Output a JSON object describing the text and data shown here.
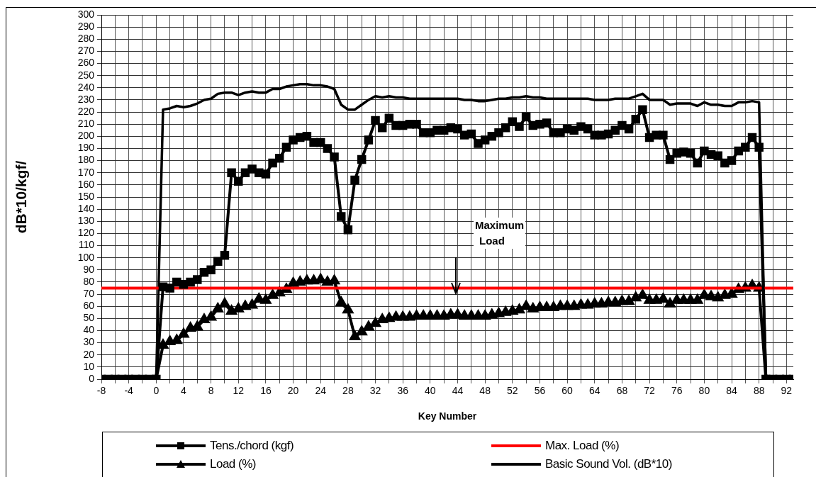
{
  "chart_data": {
    "type": "line",
    "xlabel": "Key Number",
    "ylabel": "dB*10/kgf/",
    "x": [
      -8,
      -7,
      -6,
      -5,
      -4,
      -3,
      -2,
      -1,
      0,
      1,
      2,
      3,
      4,
      5,
      6,
      7,
      8,
      9,
      10,
      11,
      12,
      13,
      14,
      15,
      16,
      17,
      18,
      19,
      20,
      21,
      22,
      23,
      24,
      25,
      26,
      27,
      28,
      29,
      30,
      31,
      32,
      33,
      34,
      35,
      36,
      37,
      38,
      39,
      40,
      41,
      42,
      43,
      44,
      45,
      46,
      47,
      48,
      49,
      50,
      51,
      52,
      53,
      54,
      55,
      56,
      57,
      58,
      59,
      60,
      61,
      62,
      63,
      64,
      65,
      66,
      67,
      68,
      69,
      70,
      71,
      72,
      73,
      74,
      75,
      76,
      77,
      78,
      79,
      80,
      81,
      82,
      83,
      84,
      85,
      86,
      87,
      88,
      89,
      90,
      91,
      92,
      93
    ],
    "series": [
      {
        "name": "Tens./chord (kgf)",
        "color": "#000000",
        "marker": "square",
        "values": [
          0,
          0,
          0,
          0,
          0,
          0,
          0,
          0,
          0,
          76,
          75,
          80,
          78,
          80,
          82,
          88,
          90,
          97,
          102,
          170,
          163,
          170,
          173,
          170,
          169,
          178,
          182,
          191,
          197,
          199,
          200,
          195,
          195,
          190,
          183,
          134,
          123,
          164,
          181,
          197,
          213,
          207,
          215,
          209,
          209,
          210,
          210,
          203,
          203,
          205,
          205,
          207,
          206,
          201,
          202,
          194,
          197,
          200,
          203,
          207,
          212,
          208,
          216,
          209,
          210,
          211,
          203,
          203,
          206,
          205,
          208,
          206,
          201,
          201,
          202,
          205,
          209,
          206,
          214,
          222,
          199,
          201,
          201,
          181,
          186,
          187,
          186,
          178,
          188,
          185,
          184,
          178,
          180,
          188,
          191,
          199,
          191,
          0,
          0,
          0,
          0,
          0
        ]
      },
      {
        "name": "Max. Load (%)",
        "color": "#ff0000",
        "marker": "none",
        "x": [
          -8,
          93
        ],
        "values": [
          75,
          75
        ]
      },
      {
        "name": "Load (%)",
        "color": "#000000",
        "marker": "triangle",
        "values": [
          null,
          null,
          null,
          null,
          null,
          null,
          null,
          null,
          0,
          28,
          31,
          32,
          37,
          42,
          43,
          49,
          51,
          58,
          62,
          56,
          58,
          60,
          61,
          66,
          65,
          69,
          71,
          74,
          79,
          80,
          81,
          81,
          82,
          80,
          81,
          63,
          57,
          35,
          39,
          43,
          46,
          49,
          50,
          51,
          51,
          51,
          52,
          52,
          52,
          52,
          52,
          53,
          53,
          52,
          52,
          52,
          52,
          53,
          54,
          55,
          56,
          57,
          60,
          58,
          59,
          59,
          59,
          60,
          60,
          60,
          61,
          61,
          62,
          62,
          63,
          63,
          64,
          64,
          67,
          69,
          65,
          65,
          66,
          62,
          65,
          65,
          65,
          65,
          69,
          68,
          67,
          69,
          70,
          74,
          75,
          77,
          75,
          0,
          null,
          null,
          null,
          null
        ]
      },
      {
        "name": "Basic Sound Vol. (dB*10)",
        "color": "#000000",
        "marker": "none",
        "values": [
          null,
          null,
          null,
          null,
          null,
          null,
          null,
          null,
          0,
          222,
          223,
          225,
          224,
          225,
          227,
          230,
          231,
          235,
          236,
          236,
          234,
          236,
          237,
          236,
          236,
          239,
          239,
          241,
          242,
          243,
          243,
          242,
          242,
          241,
          239,
          226,
          222,
          222,
          226,
          230,
          233,
          232,
          233,
          232,
          232,
          231,
          231,
          231,
          231,
          231,
          231,
          231,
          231,
          230,
          230,
          229,
          229,
          230,
          231,
          231,
          232,
          232,
          233,
          232,
          232,
          231,
          231,
          231,
          231,
          231,
          231,
          231,
          230,
          230,
          230,
          231,
          231,
          231,
          233,
          235,
          230,
          230,
          230,
          226,
          227,
          227,
          227,
          225,
          228,
          226,
          226,
          225,
          225,
          228,
          228,
          229,
          228,
          0,
          null,
          null,
          null,
          null
        ]
      }
    ],
    "xlim": [
      -8,
      93
    ],
    "xticks": [
      -8,
      {
        "value": -6,
        "label": null
      },
      -4,
      {
        "value": -2,
        "label": null
      },
      0,
      {
        "value": 2,
        "label": null
      },
      4,
      {
        "value": 6,
        "label": null
      },
      8,
      {
        "value": 10,
        "label": null
      },
      12,
      {
        "value": 14,
        "label": null
      },
      16,
      {
        "value": 18,
        "label": null
      },
      20,
      {
        "value": 22,
        "label": null
      },
      24,
      {
        "value": 26,
        "label": null
      },
      28,
      {
        "value": 30,
        "label": null
      },
      32,
      {
        "value": 34,
        "label": null
      },
      36,
      {
        "value": 38,
        "label": null
      },
      40,
      {
        "value": 42,
        "label": null
      },
      44,
      {
        "value": 46,
        "label": null
      },
      48,
      {
        "value": 50,
        "label": null
      },
      52,
      {
        "value": 54,
        "label": null
      },
      56,
      {
        "value": 58,
        "label": null
      },
      60,
      {
        "value": 62,
        "label": null
      },
      64,
      {
        "value": 66,
        "label": null
      },
      68,
      {
        "value": 70,
        "label": null
      },
      72,
      {
        "value": 74,
        "label": null
      },
      76,
      {
        "value": 78,
        "label": null
      },
      80,
      {
        "value": 82,
        "label": null
      },
      84,
      {
        "value": 86,
        "label": null
      },
      88,
      {
        "value": 90,
        "label": null
      },
      92
    ],
    "ylim": [
      0,
      300
    ],
    "yticks": [
      0,
      10,
      20,
      30,
      40,
      50,
      60,
      70,
      80,
      90,
      100,
      110,
      120,
      130,
      140,
      150,
      160,
      170,
      180,
      190,
      200,
      210,
      220,
      230,
      240,
      250,
      260,
      270,
      280,
      290,
      300
    ],
    "annotations": [
      "Maximum Load"
    ],
    "grid": true,
    "legend": "bottom",
    "line_style": "solid"
  }
}
